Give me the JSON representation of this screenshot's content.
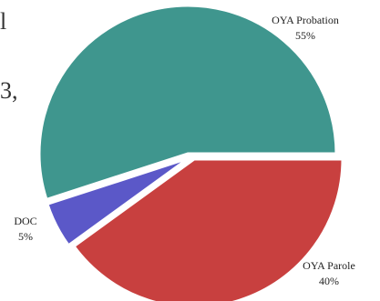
{
  "chart_data": {
    "type": "pie",
    "title": "",
    "slices": [
      {
        "name": "OYA Probation",
        "percent_label": "55%",
        "value": 55,
        "color": "#3f968e"
      },
      {
        "name": "OYA Parole",
        "percent_label": "40%",
        "value": 40,
        "color": "#c8403f"
      },
      {
        "name": "DOC",
        "percent_label": "5%",
        "value": 5,
        "color": "#5b58c8"
      }
    ]
  },
  "page": {
    "clipped_text": [
      "l",
      "3,"
    ]
  }
}
